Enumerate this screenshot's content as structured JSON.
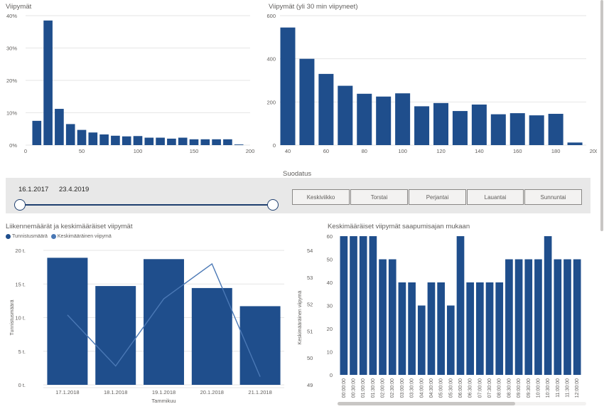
{
  "colors": {
    "bar": "#1f4e8c",
    "line": "#4a78b5",
    "grid": "#e6e6e6",
    "text": "#605e5c"
  },
  "filter": {
    "title": "Suodatus",
    "date_start": "16.1.2017",
    "date_end": "23.4.2019",
    "days": [
      "Keskiviikko",
      "Torstai",
      "Perjantai",
      "Lauantai",
      "Sunnuntai"
    ]
  },
  "legend": {
    "count": "Tunnistusmäärä",
    "avg": "Keskimääräinen viipymä"
  },
  "chart_data": [
    {
      "type": "bar",
      "title": "Viipymät",
      "xticks": [
        "0",
        "50",
        "100",
        "150",
        "200"
      ],
      "yticks": [
        "0%",
        "10%",
        "20%",
        "30%",
        "40%"
      ],
      "xlim": [
        0,
        200
      ],
      "ylim": [
        0,
        40
      ],
      "x": [
        10,
        20,
        30,
        40,
        50,
        60,
        70,
        80,
        90,
        100,
        110,
        120,
        130,
        140,
        150,
        160,
        170,
        180,
        190
      ],
      "values": [
        7.5,
        38.5,
        11.2,
        6.5,
        4.7,
        3.9,
        3.3,
        2.9,
        2.7,
        2.8,
        2.3,
        2.3,
        2.0,
        2.3,
        1.8,
        1.8,
        1.8,
        1.8,
        0.2
      ],
      "grid": true
    },
    {
      "type": "bar",
      "title": "Viipymät (yli 30 min viipyneet)",
      "xticks": [
        "40",
        "60",
        "80",
        "100",
        "120",
        "140",
        "160",
        "180",
        "200"
      ],
      "yticks": [
        "0",
        "200",
        "400",
        "600"
      ],
      "xlim": [
        40,
        200
      ],
      "ylim": [
        0,
        600
      ],
      "x": [
        40,
        50,
        60,
        70,
        80,
        90,
        100,
        110,
        120,
        130,
        140,
        150,
        160,
        170,
        180,
        190
      ],
      "values": [
        545,
        400,
        330,
        275,
        238,
        225,
        240,
        180,
        195,
        158,
        188,
        143,
        148,
        138,
        145,
        12
      ],
      "grid": true
    },
    {
      "type": "bar",
      "title": "Liikennemäärät ja keskimääräiset viipymät",
      "xlabel": "Tammikuu",
      "ylabel": "Tunnistusmäärä",
      "y2label": "Keskimääräinen viipymä",
      "categories": [
        "17.1.2018",
        "18.1.2018",
        "19.1.2018",
        "20.1.2018",
        "21.1.2018"
      ],
      "yticks": [
        "0 t.",
        "5 t.",
        "10 t.",
        "15 t.",
        "20 t."
      ],
      "y2ticks": [
        "49",
        "50",
        "51",
        "52",
        "53",
        "54"
      ],
      "ylim": [
        0,
        20000
      ],
      "y2lim": [
        49,
        54
      ],
      "series": [
        {
          "name": "Tunnistusmäärä",
          "type": "bar",
          "values": [
            18900,
            14700,
            18700,
            14400,
            11700
          ]
        },
        {
          "name": "Keskimääräinen viipymä",
          "type": "line",
          "values": [
            51.6,
            49.7,
            52.2,
            53.5,
            49.3
          ]
        }
      ]
    },
    {
      "type": "bar",
      "title": "Keskimääräiset viipymät saapumisajan mukaan",
      "yticks": [
        "0",
        "10",
        "20",
        "30",
        "40",
        "50",
        "60"
      ],
      "ylim": [
        0,
        60
      ],
      "categories": [
        "00:00:00",
        "00:30:00",
        "01:00:00",
        "01:30:00",
        "02:00:00",
        "02:30:00",
        "03:00:00",
        "03:30:00",
        "04:00:00",
        "04:30:00",
        "05:00:00",
        "05:30:00",
        "06:00:00",
        "06:30:00",
        "07:00:00",
        "07:30:00",
        "08:00:00",
        "08:30:00",
        "09:00:00",
        "09:30:00",
        "10:00:00",
        "10:30:00",
        "11:00:00",
        "11:30:00",
        "12:00:00"
      ],
      "values": [
        60,
        60,
        60,
        60,
        50,
        50,
        40,
        40,
        30,
        40,
        40,
        30,
        60,
        40,
        40,
        40,
        40,
        50,
        50,
        50,
        50,
        60,
        50,
        50,
        50
      ]
    }
  ]
}
